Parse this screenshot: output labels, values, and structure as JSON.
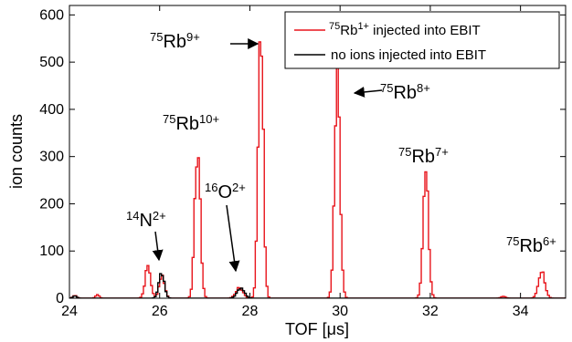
{
  "chart_data": {
    "type": "line",
    "xlabel": "TOF [μs]",
    "ylabel": "ion counts",
    "xlim": [
      24,
      35
    ],
    "ylim": [
      0,
      620
    ],
    "xticks": [
      24,
      26,
      28,
      30,
      32,
      34
    ],
    "yticks": [
      0,
      100,
      200,
      300,
      400,
      500,
      600
    ],
    "grid": false,
    "legend_placement": "top-right",
    "colors": {
      "red": "#e8141b",
      "black": "#000000"
    },
    "series": [
      {
        "name_parts": {
          "pre": "",
          "sup1": "75",
          "mid": "Rb",
          "sup2": "1+",
          "post": " injected into EBIT"
        },
        "color": "#e8141b",
        "peaks": [
          {
            "center": 24.1,
            "height": 6,
            "width": 0.04
          },
          {
            "center": 24.6,
            "height": 8,
            "width": 0.04
          },
          {
            "center": 25.72,
            "height": 68,
            "width": 0.06
          },
          {
            "center": 26.03,
            "height": 48,
            "width": 0.06
          },
          {
            "center": 26.82,
            "height": 318,
            "width": 0.06
          },
          {
            "center": 27.75,
            "height": 22,
            "width": 0.08
          },
          {
            "center": 28.22,
            "height": 598,
            "width": 0.055
          },
          {
            "center": 29.92,
            "height": 465,
            "width": 0.06
          },
          {
            "center": 31.88,
            "height": 260,
            "width": 0.06
          },
          {
            "center": 33.6,
            "height": 4,
            "width": 0.05
          },
          {
            "center": 34.45,
            "height": 58,
            "width": 0.07
          }
        ]
      },
      {
        "name": "no ions injected into EBIT",
        "color": "#000000",
        "peaks": [
          {
            "center": 24.1,
            "height": 5,
            "width": 0.04
          },
          {
            "center": 26.02,
            "height": 55,
            "width": 0.06
          },
          {
            "center": 27.78,
            "height": 22,
            "width": 0.08
          }
        ]
      }
    ],
    "annotations": [
      {
        "pre": "",
        "sup": "75",
        "base": "Rb",
        "charge": "9+",
        "arrow": true
      },
      {
        "pre": "",
        "sup": "75",
        "base": "Rb",
        "charge": "8+",
        "arrow": true
      },
      {
        "pre": "",
        "sup": "75",
        "base": "Rb",
        "charge": "10+",
        "arrow": false
      },
      {
        "pre": "",
        "sup": "75",
        "base": "Rb",
        "charge": "7+",
        "arrow": false
      },
      {
        "pre": "",
        "sup": "75",
        "base": "Rb",
        "charge": "6+",
        "arrow": false
      },
      {
        "pre": "",
        "sup": "14",
        "base": "N",
        "charge": "2+",
        "arrow": true
      },
      {
        "pre": "",
        "sup": "16",
        "base": "O",
        "charge": "2+",
        "arrow": true
      }
    ]
  }
}
